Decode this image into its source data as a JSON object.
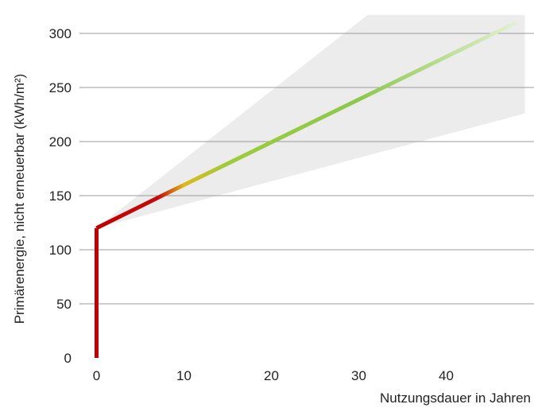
{
  "chart_data": {
    "type": "line",
    "title": "",
    "xlabel": "Nutzungsdauer in Jahren",
    "ylabel": "Primärenergie, nicht erneuerbar (kWh/m²)",
    "xlim": [
      -2,
      49
    ],
    "ylim": [
      0,
      315
    ],
    "x_ticks": [
      0,
      10,
      20,
      30,
      40
    ],
    "y_ticks": [
      0,
      50,
      100,
      150,
      200,
      250,
      300
    ],
    "x_tick_labels": [
      "0",
      "10",
      "20",
      "30",
      "40"
    ],
    "y_tick_labels": [
      "0",
      "50",
      "100",
      "150",
      "200",
      "250",
      "300"
    ],
    "grid": "horizontal",
    "legend": "none",
    "series": [
      {
        "points": [
          {
            "x": 0,
            "y": 0
          },
          {
            "x": 0,
            "y": 120
          },
          {
            "x": 8,
            "y": 152
          },
          {
            "x": 48,
            "y": 310
          }
        ],
        "gradient": [
          {
            "x": 0,
            "color": "#c00000"
          },
          {
            "x": 7,
            "color": "#c40a0a"
          },
          {
            "x": 10,
            "color": "#e0b81c"
          },
          {
            "x": 15,
            "color": "#9ccc3a"
          },
          {
            "x": 30,
            "color": "#8cc84b"
          },
          {
            "x": 48,
            "color": "#e3f0d2"
          }
        ]
      }
    ],
    "uncertainty_band": {
      "color": "#ececec",
      "lower": [
        {
          "x": 0,
          "y": 120
        },
        {
          "x": 49,
          "y": 226
        }
      ],
      "upper": [
        {
          "x": 0,
          "y": 120
        },
        {
          "x": 31,
          "y": 317
        },
        {
          "x": 49,
          "y": 317
        }
      ]
    }
  }
}
